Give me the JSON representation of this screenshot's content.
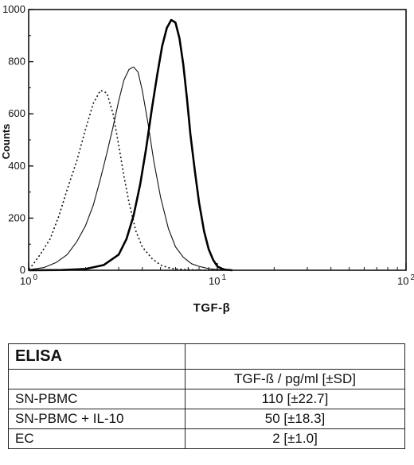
{
  "chart_data": {
    "type": "line",
    "xlabel": "TGF-β",
    "ylabel": "Counts",
    "x_scale": "log",
    "xlim": [
      1,
      100
    ],
    "ylim": [
      0,
      1000
    ],
    "x_ticks": [
      {
        "base": "10",
        "exp": "0",
        "value": 1
      },
      {
        "base": "10",
        "exp": "1",
        "value": 10
      },
      {
        "base": "10",
        "exp": "2",
        "value": 100
      }
    ],
    "y_ticks": [
      0,
      200,
      400,
      600,
      800,
      1000
    ],
    "series": [
      {
        "style": "dotted",
        "color": "#111111",
        "x": [
          1.0,
          1.05,
          1.15,
          1.3,
          1.45,
          1.6,
          1.8,
          2.0,
          2.2,
          2.4,
          2.6,
          2.8,
          3.0,
          3.2,
          3.4,
          3.7,
          4.0,
          4.5,
          5.0,
          5.5,
          6.0,
          7.0,
          8.0,
          10.0
        ],
        "y": [
          5,
          20,
          60,
          120,
          210,
          310,
          420,
          540,
          640,
          690,
          680,
          600,
          480,
          360,
          260,
          150,
          90,
          45,
          20,
          10,
          5,
          2,
          1,
          0
        ]
      },
      {
        "style": "thin",
        "color": "#111111",
        "x": [
          1.0,
          1.2,
          1.4,
          1.6,
          1.8,
          2.0,
          2.2,
          2.4,
          2.6,
          2.8,
          3.0,
          3.2,
          3.4,
          3.6,
          3.8,
          4.0,
          4.3,
          4.6,
          5.0,
          5.5,
          6.0,
          6.6,
          7.3,
          8.0,
          9.0,
          10.0,
          11.0
        ],
        "y": [
          2,
          10,
          30,
          60,
          110,
          170,
          250,
          350,
          450,
          550,
          650,
          730,
          770,
          780,
          760,
          690,
          560,
          420,
          280,
          160,
          90,
          50,
          25,
          15,
          6,
          3,
          1
        ]
      },
      {
        "style": "thick",
        "color": "#000000",
        "x": [
          1.0,
          1.5,
          2.0,
          2.5,
          3.0,
          3.3,
          3.6,
          3.9,
          4.2,
          4.5,
          4.8,
          5.1,
          5.4,
          5.7,
          6.0,
          6.3,
          6.6,
          6.9,
          7.2,
          7.6,
          8.0,
          8.5,
          9.0,
          9.5,
          10.0,
          10.5,
          11.0,
          12.0
        ],
        "y": [
          0,
          1,
          5,
          20,
          60,
          120,
          210,
          330,
          470,
          620,
          750,
          860,
          930,
          960,
          950,
          890,
          790,
          660,
          520,
          380,
          260,
          150,
          80,
          40,
          15,
          7,
          2,
          0
        ]
      }
    ]
  },
  "table": {
    "title": "ELISA",
    "column_header": "TGF-ß / pg/ml [±SD]",
    "rows": [
      {
        "label": "SN-PBMC",
        "value": "110 [±22.7]"
      },
      {
        "label": "SN-PBMC + IL-10",
        "value": "50 [±18.3]"
      },
      {
        "label": "EC",
        "value": "2 [±1.0]"
      }
    ]
  }
}
